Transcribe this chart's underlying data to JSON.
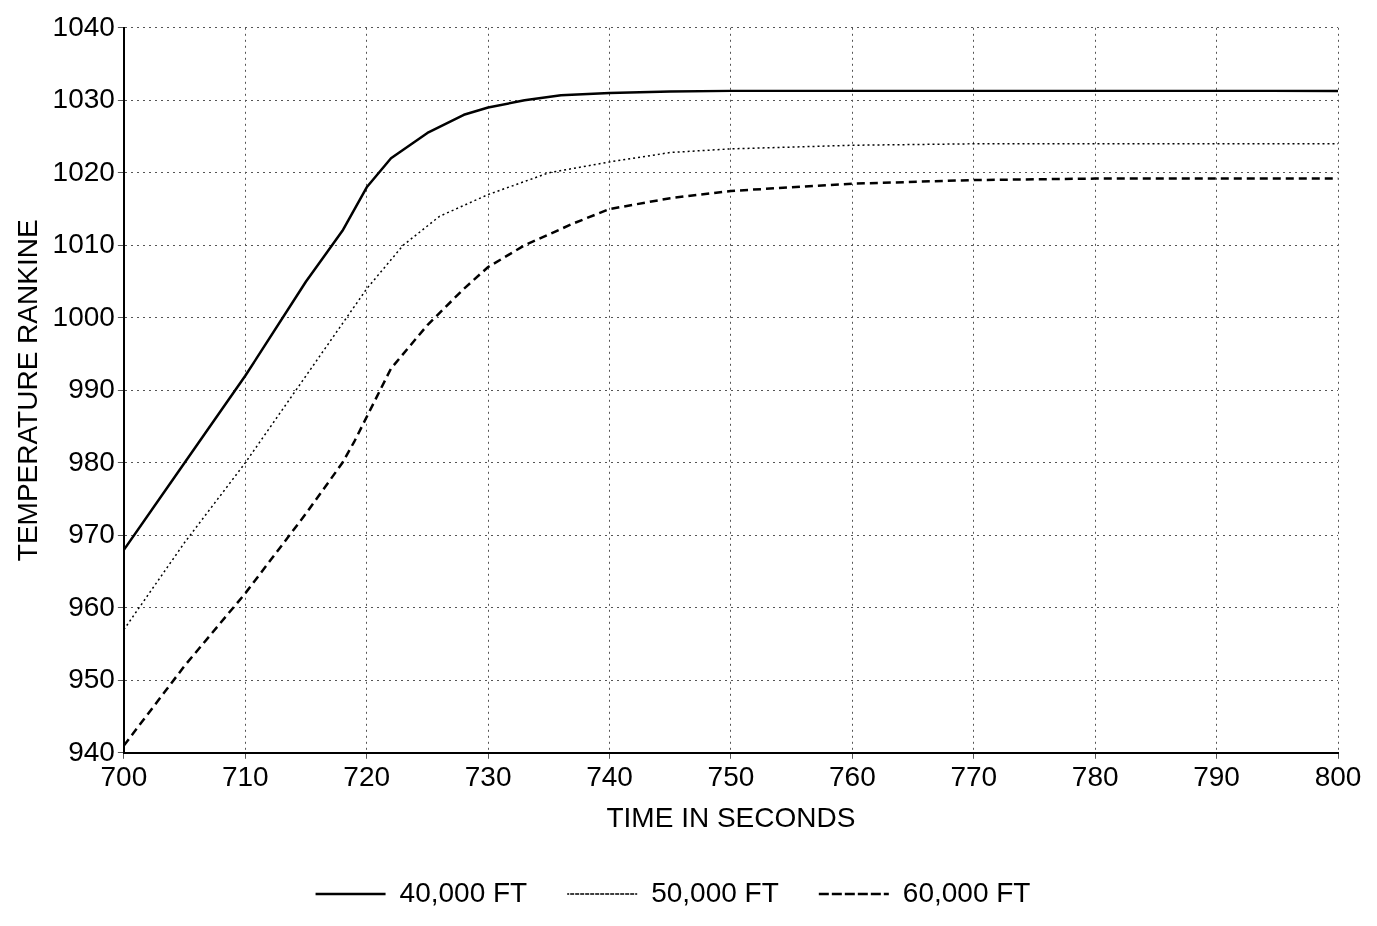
{
  "chart_data": {
    "type": "line",
    "xlabel": "TIME IN SECONDS",
    "ylabel": "TEMPERATURE RANKINE",
    "xlim": [
      700,
      800
    ],
    "xticks": [
      700,
      710,
      720,
      730,
      740,
      750,
      760,
      770,
      780,
      790,
      800
    ],
    "ylim": [
      940,
      1040
    ],
    "yticks": [
      940,
      950,
      960,
      970,
      980,
      990,
      1000,
      1010,
      1020,
      1030,
      1040
    ],
    "grid": true,
    "legend": "bottom",
    "marker": "none",
    "series": [
      {
        "name": "40,000 FT",
        "color": "#000000",
        "line_style": "solid",
        "x": [
          700,
          705,
          710,
          715,
          718,
          720,
          722,
          725,
          728,
          730,
          733,
          736,
          740,
          745,
          750,
          800
        ],
        "values": [
          968,
          980,
          992,
          1005,
          1012,
          1018,
          1022,
          1025.5,
          1028,
          1029,
          1030,
          1030.7,
          1031,
          1031.2,
          1031.3,
          1031.3
        ]
      },
      {
        "name": "50,000 FT",
        "color": "#000000",
        "line_style": "dotted",
        "x": [
          700,
          705,
          710,
          715,
          720,
          723,
          726,
          730,
          735,
          740,
          745,
          750,
          760,
          770,
          800
        ],
        "values": [
          957,
          969,
          980,
          992,
          1004,
          1010,
          1014,
          1017,
          1020,
          1021.5,
          1022.8,
          1023.3,
          1023.8,
          1024,
          1024
        ]
      },
      {
        "name": "60,000 FT",
        "color": "#000000",
        "line_style": "dashed",
        "x": [
          700,
          705,
          710,
          715,
          718,
          719,
          722,
          725,
          728,
          730,
          733,
          737,
          740,
          745,
          750,
          755,
          760,
          770,
          780,
          800
        ],
        "values": [
          941,
          952,
          962,
          973,
          980,
          983,
          993,
          999,
          1004,
          1007,
          1010,
          1013,
          1015,
          1016.5,
          1017.5,
          1018,
          1018.5,
          1019,
          1019.2,
          1019.2
        ]
      }
    ]
  }
}
